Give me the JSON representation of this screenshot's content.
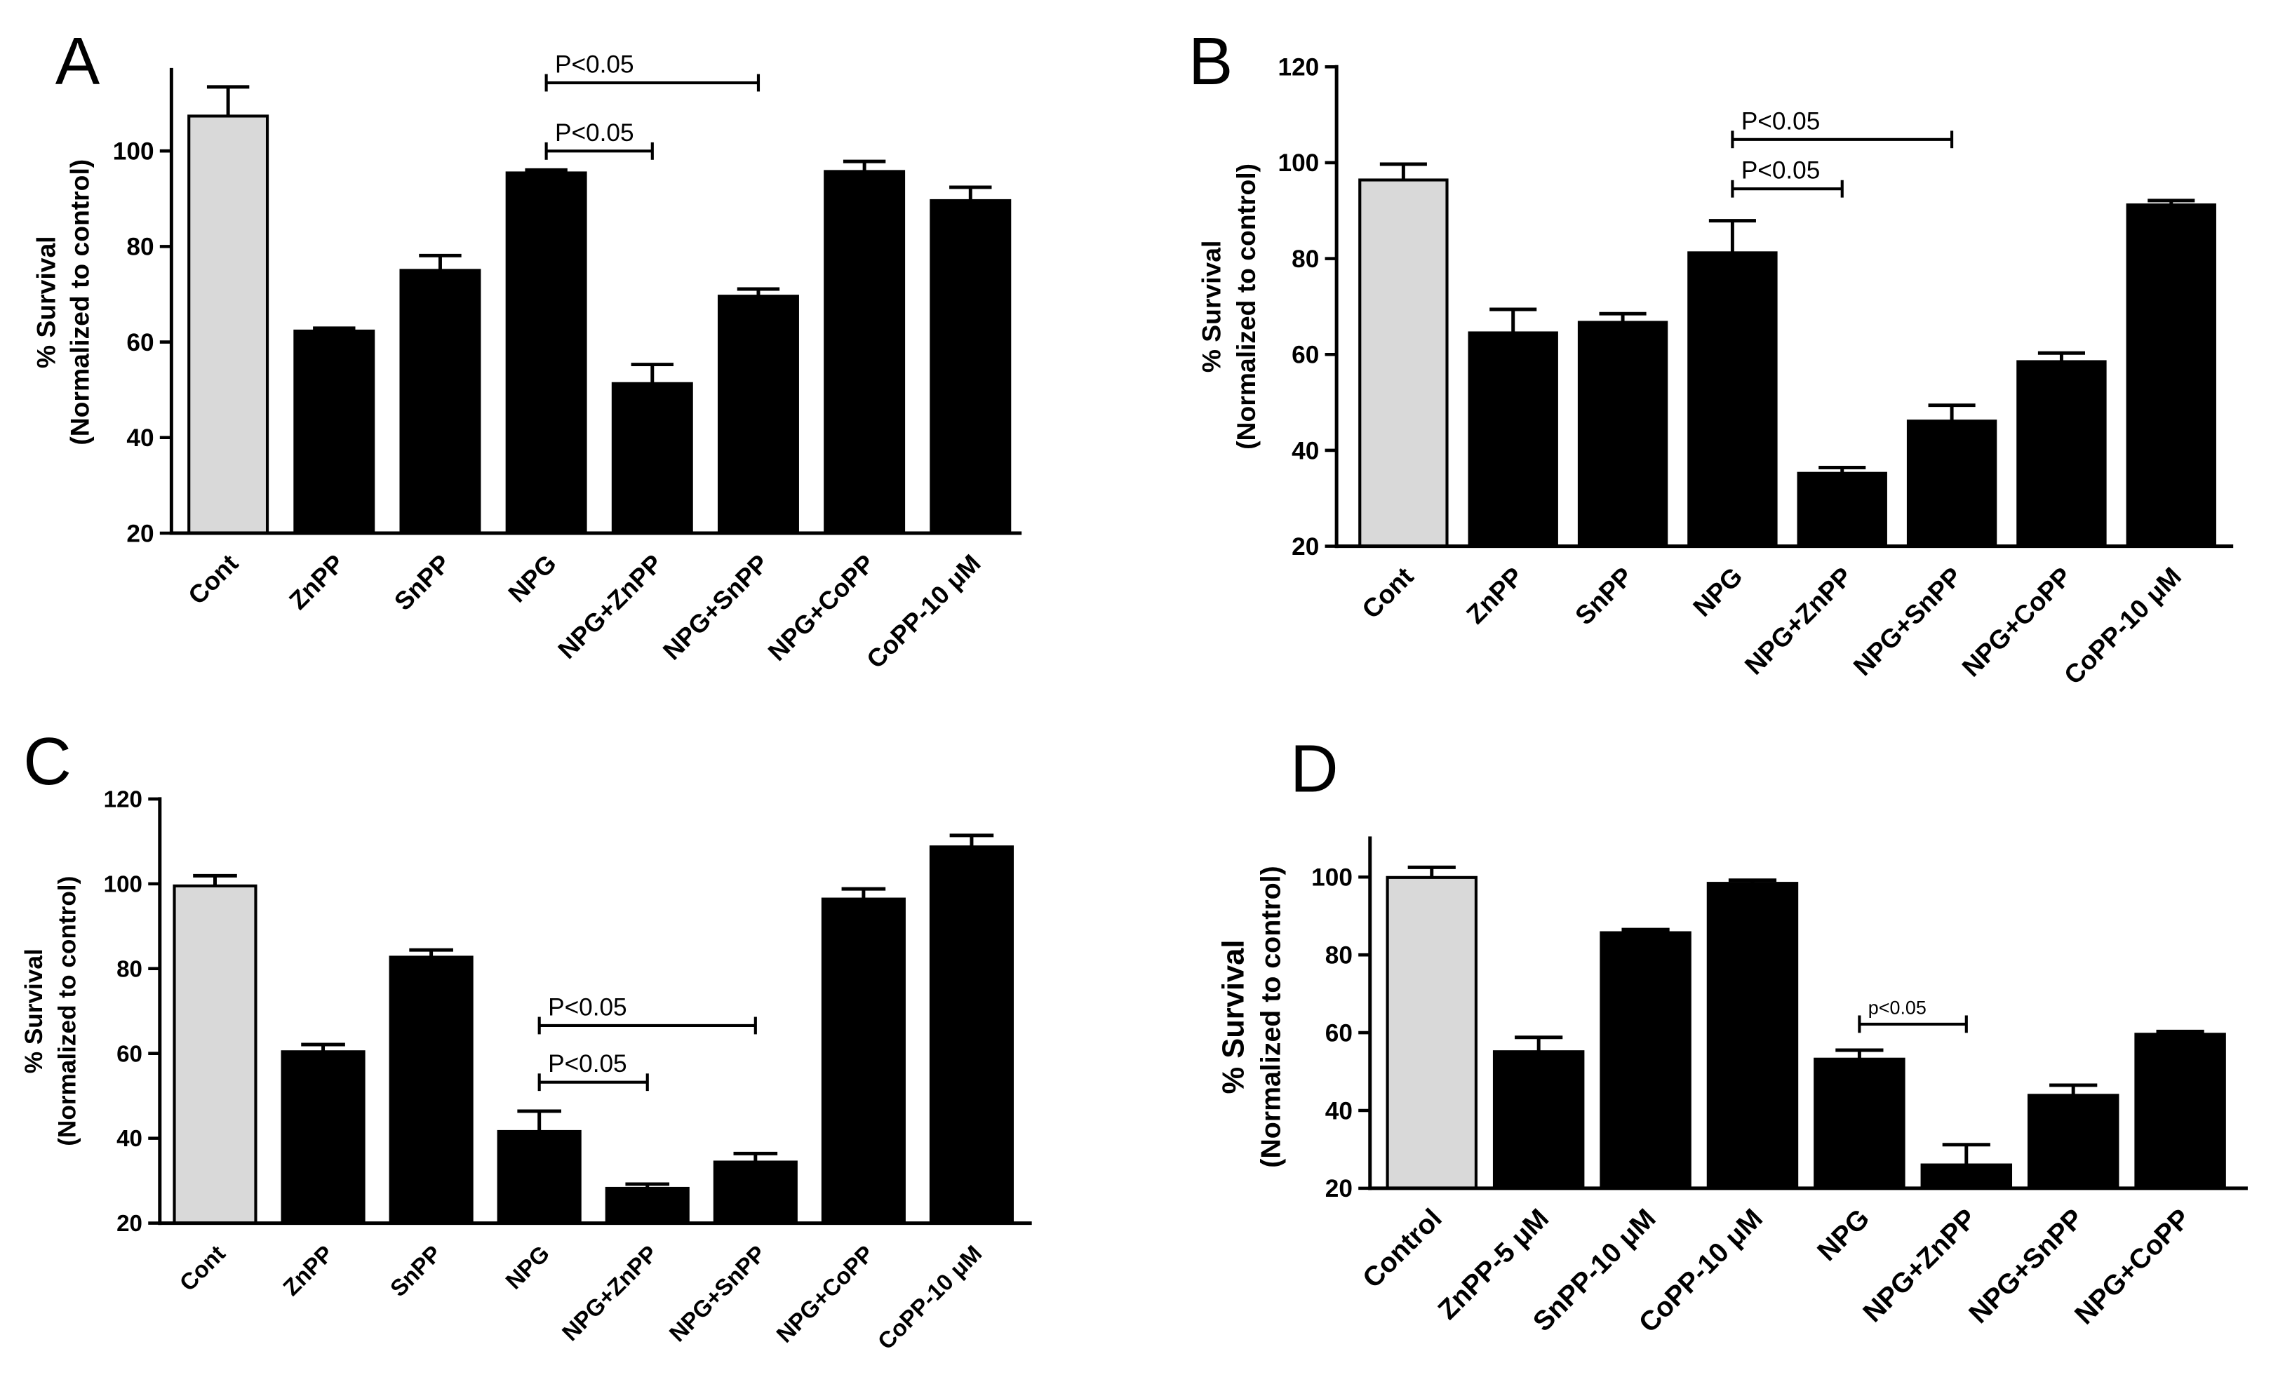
{
  "chart_data": [
    {
      "type": "bar",
      "title": "A",
      "ylabel": [
        "% Survival",
        "(Normalized to control)"
      ],
      "ylim": [
        20,
        117
      ],
      "yticks": [
        20,
        40,
        60,
        80,
        100
      ],
      "categories": [
        "Cont",
        "ZnPP",
        "SnPP",
        "NPG",
        "NPG+ZnPP",
        "NPG+SnPP",
        "NPG+CoPP",
        "CoPP-10 μM"
      ],
      "values": [
        107.3,
        62.3,
        75.0,
        95.4,
        51.3,
        69.6,
        95.7,
        89.6
      ],
      "errors": [
        6.1,
        0.6,
        3.1,
        0.6,
        4.0,
        1.5,
        2.1,
        2.8
      ],
      "bar_colors": [
        "#d9d9d9",
        "#000000",
        "#000000",
        "#000000",
        "#000000",
        "#000000",
        "#000000",
        "#000000"
      ],
      "annotations": [
        {
          "text": "P<0.05",
          "from": 3,
          "to": 5
        },
        {
          "text": "P<0.05",
          "from": 3,
          "to": 4
        }
      ]
    },
    {
      "type": "bar",
      "title": "B",
      "ylabel": [
        "% Survival",
        "(Normalized to control)"
      ],
      "ylim": [
        20,
        120
      ],
      "yticks": [
        20,
        40,
        60,
        80,
        100,
        120
      ],
      "categories": [
        "Cont",
        "ZnPP",
        "SnPP",
        "NPG",
        "NPG+ZnPP",
        "NPG+SnPP",
        "NPG+CoPP",
        "CoPP-10 μM"
      ],
      "values": [
        96.4,
        64.5,
        66.7,
        81.2,
        35.2,
        46.1,
        58.5,
        91.2
      ],
      "errors": [
        3.3,
        4.9,
        1.8,
        6.7,
        1.2,
        3.3,
        1.8,
        0.9
      ],
      "bar_colors": [
        "#d9d9d9",
        "#000000",
        "#000000",
        "#000000",
        "#000000",
        "#000000",
        "#000000",
        "#000000"
      ],
      "annotations": [
        {
          "text": "P<0.05",
          "from": 3,
          "to": 5
        },
        {
          "text": "P<0.05",
          "from": 3,
          "to": 4
        }
      ]
    },
    {
      "type": "bar",
      "title": "C",
      "ylabel": [
        "% Survival",
        "(Normalized to control)"
      ],
      "ylim": [
        20,
        120
      ],
      "yticks": [
        20,
        40,
        60,
        80,
        100,
        120
      ],
      "categories": [
        "Cont",
        "ZnPP",
        "SnPP",
        "NPG",
        "NPG+ZnPP",
        "NPG+SnPP",
        "NPG+CoPP",
        "CoPP-10 μM"
      ],
      "values": [
        99.5,
        60.4,
        82.7,
        41.6,
        28.2,
        34.4,
        96.4,
        108.7
      ],
      "errors": [
        2.4,
        1.7,
        1.7,
        4.8,
        1.0,
        2.0,
        2.4,
        2.7
      ],
      "bar_colors": [
        "#d9d9d9",
        "#000000",
        "#000000",
        "#000000",
        "#000000",
        "#000000",
        "#000000",
        "#000000"
      ],
      "annotations": [
        {
          "text": "P<0.05",
          "from": 3,
          "to": 5
        },
        {
          "text": "P<0.05",
          "from": 3,
          "to": 4
        }
      ]
    },
    {
      "type": "bar",
      "title": "D",
      "ylabel": [
        "% Survival",
        "(Normalized to control)"
      ],
      "ylim": [
        20,
        110
      ],
      "yticks": [
        20,
        40,
        60,
        80,
        100
      ],
      "categories": [
        "Control",
        "ZnPP-5 μM",
        "SnPP-10 μM",
        "CoPP-10 μM",
        "NPG",
        "NPG+ZnPP",
        "NPG+SnPP",
        "NPG+CoPP"
      ],
      "values": [
        99.9,
        55.1,
        85.7,
        98.4,
        53.2,
        26.0,
        43.9,
        59.6
      ],
      "errors": [
        2.6,
        3.7,
        0.8,
        0.8,
        2.3,
        5.2,
        2.6,
        0.7
      ],
      "bar_colors": [
        "#d9d9d9",
        "#000000",
        "#000000",
        "#000000",
        "#000000",
        "#000000",
        "#000000",
        "#000000"
      ],
      "annotations": [
        {
          "text": "p<0.05",
          "from": 4,
          "to": 5
        }
      ]
    }
  ]
}
